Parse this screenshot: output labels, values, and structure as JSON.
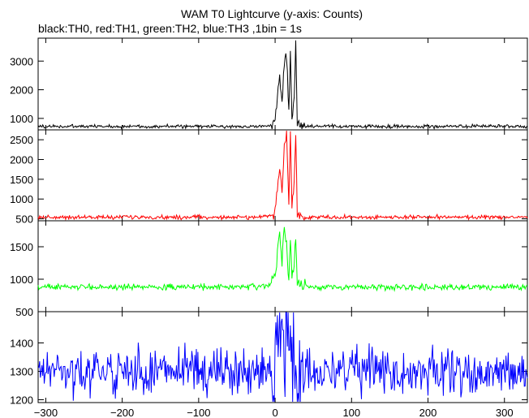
{
  "chart_data": {
    "type": "line",
    "title": "WAM T0 Lightcurve (y-axis: Counts)",
    "subtitle": "black:TH0, red:TH1, green:TH2, blue:TH3 ,1bin = 1s",
    "xlim": [
      -310,
      330
    ],
    "x_ticks": [
      -300,
      -200,
      -100,
      0,
      100,
      200,
      300
    ],
    "x_tick_labels": [
      "−300",
      "−200",
      "−100",
      "0",
      "100",
      "200",
      "300"
    ],
    "grid": false,
    "panels": [
      {
        "name": "TH0",
        "color": "#000000",
        "ylim": [
          600,
          3800
        ],
        "y_ticks": [
          1000,
          2000,
          3000
        ],
        "y_tick_labels": [
          "1000",
          "2000",
          "3000"
        ],
        "baseline": 720,
        "noise": 30,
        "burst": [
          [
            -310,
            720
          ],
          [
            -20,
            720
          ],
          [
            -5,
            760
          ],
          [
            0,
            900
          ],
          [
            3,
            1700
          ],
          [
            6,
            2500
          ],
          [
            9,
            1500
          ],
          [
            12,
            2900
          ],
          [
            15,
            3200
          ],
          [
            18,
            1200
          ],
          [
            20,
            3300
          ],
          [
            22,
            900
          ],
          [
            25,
            1800
          ],
          [
            27,
            3700
          ],
          [
            29,
            800
          ],
          [
            35,
            740
          ],
          [
            45,
            720
          ],
          [
            330,
            720
          ]
        ]
      },
      {
        "name": "TH1",
        "color": "#ff0000",
        "ylim": [
          450,
          2750
        ],
        "y_ticks": [
          500,
          1000,
          1500,
          2000,
          2500
        ],
        "y_tick_labels": [
          "500",
          "1000",
          "1500",
          "2000",
          "2500"
        ],
        "baseline": 540,
        "noise": 25,
        "burst": [
          [
            -310,
            540
          ],
          [
            -20,
            540
          ],
          [
            -5,
            580
          ],
          [
            0,
            700
          ],
          [
            3,
            1300
          ],
          [
            6,
            1800
          ],
          [
            9,
            1200
          ],
          [
            12,
            2300
          ],
          [
            15,
            2600
          ],
          [
            18,
            900
          ],
          [
            20,
            2700
          ],
          [
            22,
            700
          ],
          [
            25,
            1400
          ],
          [
            27,
            2600
          ],
          [
            29,
            650
          ],
          [
            35,
            560
          ],
          [
            45,
            540
          ],
          [
            330,
            540
          ]
        ]
      },
      {
        "name": "TH2",
        "color": "#00ff00",
        "ylim": [
          500,
          1900
        ],
        "y_ticks": [
          500,
          1000,
          1500
        ],
        "y_tick_labels": [
          "500",
          "1000",
          "1500"
        ],
        "baseline": 880,
        "noise": 22,
        "burst": [
          [
            -310,
            880
          ],
          [
            -20,
            880
          ],
          [
            -5,
            920
          ],
          [
            0,
            1050
          ],
          [
            3,
            1400
          ],
          [
            6,
            1700
          ],
          [
            9,
            1200
          ],
          [
            12,
            1850
          ],
          [
            15,
            1500
          ],
          [
            18,
            1000
          ],
          [
            20,
            1750
          ],
          [
            22,
            950
          ],
          [
            25,
            1300
          ],
          [
            27,
            1600
          ],
          [
            29,
            920
          ],
          [
            35,
            890
          ],
          [
            45,
            880
          ],
          [
            330,
            880
          ]
        ]
      },
      {
        "name": "TH3",
        "color": "#0000ff",
        "ylim": [
          1190,
          1510
        ],
        "y_ticks": [
          1200,
          1300,
          1400
        ],
        "y_tick_labels": [
          "1200",
          "1300",
          "1400"
        ],
        "baseline": 1300,
        "noise": 38,
        "burst": [
          [
            -310,
            1300
          ],
          [
            -5,
            1300
          ],
          [
            0,
            1320
          ],
          [
            5,
            1430
          ],
          [
            8,
            1380
          ],
          [
            10,
            1490
          ],
          [
            12,
            1350
          ],
          [
            15,
            1460
          ],
          [
            20,
            1310
          ],
          [
            30,
            1300
          ],
          [
            330,
            1300
          ]
        ]
      }
    ]
  }
}
